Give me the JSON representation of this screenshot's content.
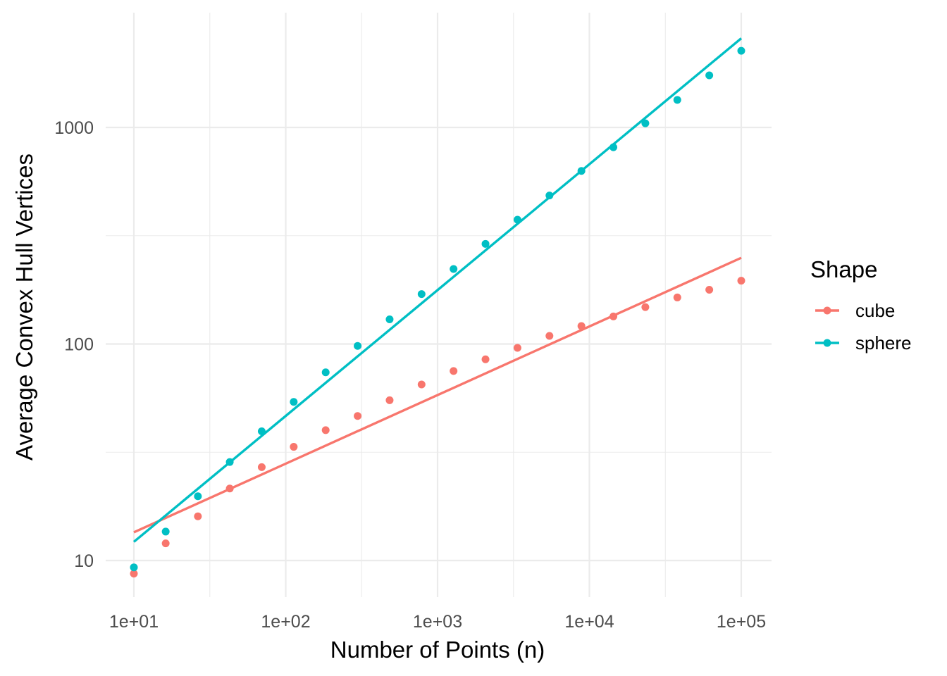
{
  "chart_data": {
    "type": "scatter",
    "title": "",
    "xlabel": "Number of Points (n)",
    "ylabel": "Average Convex Hull Vertices",
    "x_scale": "log10",
    "y_scale": "log10",
    "xlim": [
      10,
      100000
    ],
    "ylim": [
      7,
      3500
    ],
    "x_ticks": [
      {
        "value": 10,
        "label": "1e+01"
      },
      {
        "value": 100,
        "label": "1e+02"
      },
      {
        "value": 1000,
        "label": "1e+03"
      },
      {
        "value": 10000,
        "label": "1e+04"
      },
      {
        "value": 100000,
        "label": "1e+05"
      }
    ],
    "y_ticks": [
      {
        "value": 10,
        "label": "10"
      },
      {
        "value": 100,
        "label": "100"
      },
      {
        "value": 1000,
        "label": "1000"
      }
    ],
    "grid": true,
    "legend": {
      "title": "Shape",
      "position": "right"
    },
    "x": [
      10,
      16.2,
      26.4,
      42.8,
      69.5,
      112.9,
      183.3,
      297.6,
      483.3,
      784.8,
      1274.3,
      2069.1,
      3359.8,
      5455.6,
      8858.7,
      14384.5,
      23357.2,
      37926.9,
      61584.8,
      100000
    ],
    "series": [
      {
        "name": "cube",
        "color": "#f8766d",
        "values": [
          8.7,
          12.0,
          16.0,
          21.5,
          27.0,
          33.5,
          40.0,
          46.5,
          55.0,
          65.0,
          75.0,
          85.0,
          96.0,
          109.0,
          121.0,
          134.0,
          148.0,
          164.0,
          178.0,
          196.0
        ],
        "fit": {
          "x": [
            10,
            100000
          ],
          "y": [
            13.5,
            250
          ]
        }
      },
      {
        "name": "sphere",
        "color": "#00bfc4",
        "values": [
          9.3,
          13.6,
          19.8,
          28.5,
          39.5,
          54.0,
          74.0,
          98.0,
          130.0,
          170.0,
          222.0,
          290.0,
          375.0,
          485.0,
          630.0,
          810.0,
          1045.0,
          1340.0,
          1740.0,
          2260.0
        ],
        "fit": {
          "x": [
            10,
            100000
          ],
          "y": [
            12.2,
            2580
          ]
        }
      }
    ]
  }
}
